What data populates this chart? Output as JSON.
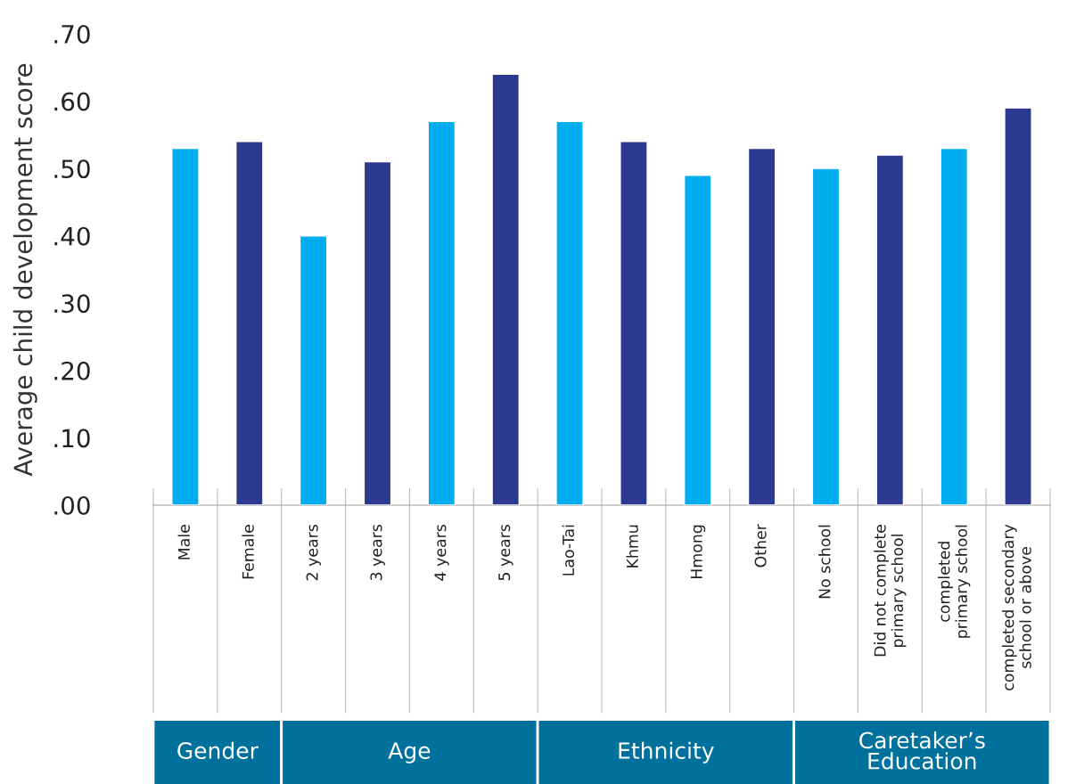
{
  "chart_data": {
    "type": "bar",
    "ylabel": "Average child development score",
    "categories": [
      "Male",
      "Female",
      "2 years",
      "3 years",
      "4 years",
      "5 years",
      "Lao-Tai",
      "Khmu",
      "Hmong",
      "Other",
      "No school",
      "Did not complete\nprimary school",
      "completed\nprimary school",
      "completed secondary\nschool or above"
    ],
    "values": [
      0.53,
      0.54,
      0.4,
      0.51,
      0.57,
      0.64,
      0.57,
      0.54,
      0.49,
      0.53,
      0.5,
      0.52,
      0.53,
      0.59
    ],
    "colors": [
      "#00aeef",
      "#2b3990",
      "#00aeef",
      "#2b3990",
      "#00aeef",
      "#2b3990",
      "#00aeef",
      "#2b3990",
      "#00aeef",
      "#2b3990",
      "#00aeef",
      "#2b3990",
      "#00aeef",
      "#2b3990"
    ],
    "ylim": [
      0,
      0.7
    ],
    "yticks": [
      {
        "value": 0,
        "label": ".00"
      },
      {
        "value": 0.1,
        "label": ".10"
      },
      {
        "value": 0.2,
        "label": ".20"
      },
      {
        "value": 0.3,
        "label": ".30"
      },
      {
        "value": 0.4,
        "label": ".40"
      },
      {
        "value": 0.5,
        "label": ".50"
      },
      {
        "value": 0.6,
        "label": ".60"
      },
      {
        "value": 0.7,
        "label": ".70"
      }
    ],
    "annotations": [
      "Gender",
      "Age",
      "Ethnicity",
      "Caretaker’s\nEducation"
    ]
  }
}
